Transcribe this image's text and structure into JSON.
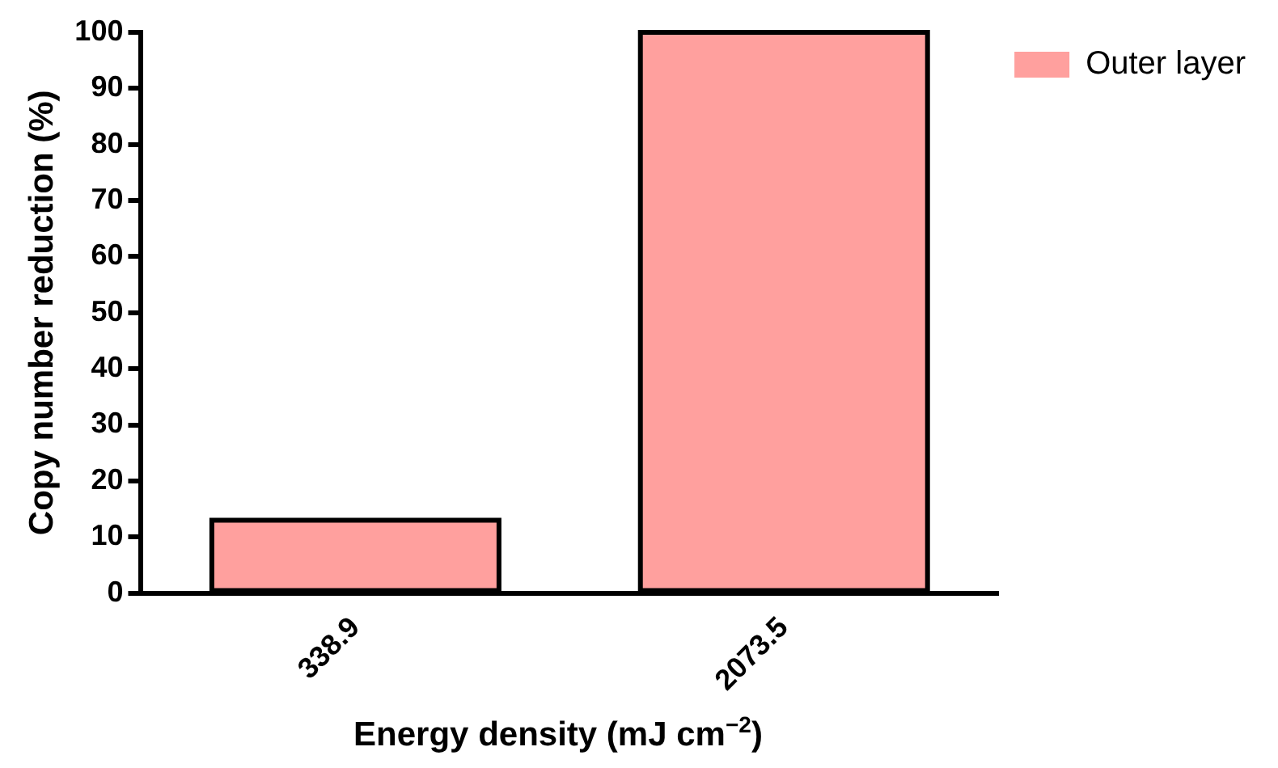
{
  "chart_data": {
    "type": "bar",
    "xlabel": "Energy density (mJ cm$^{−2}$)",
    "ylabel": "Copy number reduction (%)",
    "categories": [
      "338.9",
      "2073.5"
    ],
    "series": [
      {
        "name": "Outer layer",
        "color": "#ffa09e",
        "values": [
          13,
          100
        ]
      }
    ],
    "ylim": [
      0,
      100
    ],
    "yticks": [
      0,
      10,
      20,
      30,
      40,
      50,
      60,
      70,
      80,
      90,
      100
    ],
    "legend": "top right"
  }
}
